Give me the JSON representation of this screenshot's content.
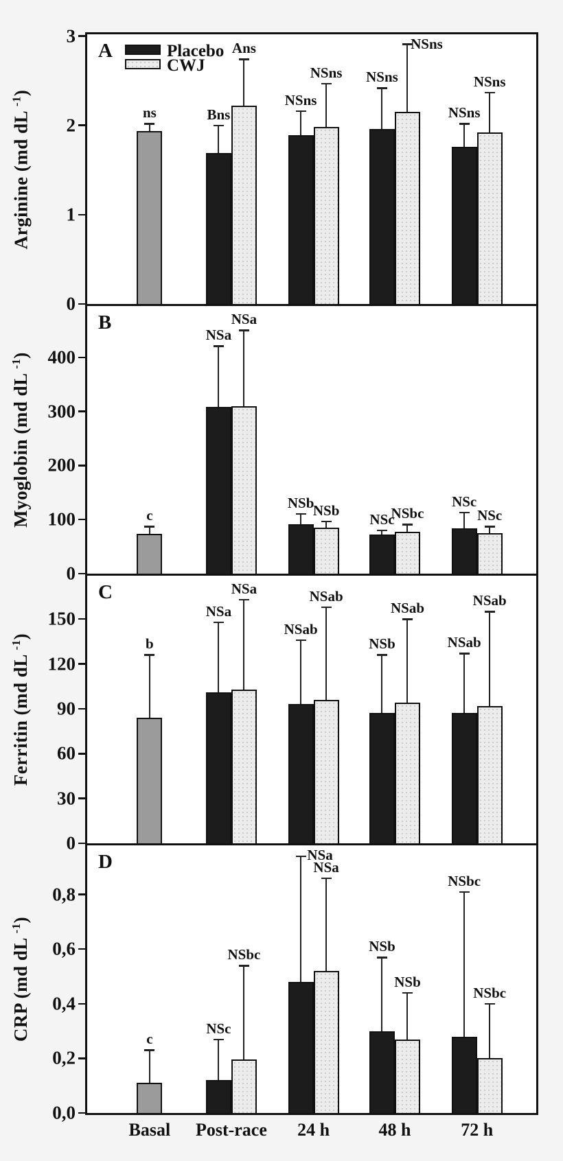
{
  "figure": {
    "background": "#f4f4f4",
    "colors": {
      "placebo": "#1c1c1c",
      "cwj": "#ececec",
      "basal": "#9b9b9b",
      "axis": "#111111"
    },
    "legend": [
      {
        "series": "Placebo",
        "swatch": "placebo"
      },
      {
        "series": "CWJ",
        "swatch": "cwj"
      }
    ]
  },
  "chart_data": {
    "type": "bar",
    "categories": [
      "Basal",
      "Post-race",
      "24 h",
      "48 h",
      "72 h"
    ],
    "series": [
      "Placebo",
      "CWJ"
    ],
    "panels": [
      {
        "letter": "A",
        "measure": "Arginine",
        "unit_base": "md dL",
        "unit_exp": "-1",
        "ylabel": "Arginine (md dL-1)",
        "ylim": [
          0,
          3.02
        ],
        "yticks": [
          {
            "v": 0,
            "label": "0"
          },
          {
            "v": 1,
            "label": "1"
          },
          {
            "v": 2,
            "label": "2"
          },
          {
            "v": 3,
            "label": "3"
          }
        ],
        "bars": [
          {
            "category": "Basal",
            "series": "Basal",
            "value": 1.94,
            "err_top": 2.02,
            "sig": "ns"
          },
          {
            "category": "Post-race",
            "series": "Placebo",
            "value": 1.69,
            "err_top": 2.0,
            "sig": "Bns"
          },
          {
            "category": "Post-race",
            "series": "CWJ",
            "value": 2.22,
            "err_top": 2.74,
            "sig": "Ans"
          },
          {
            "category": "24 h",
            "series": "Placebo",
            "value": 1.89,
            "err_top": 2.16,
            "sig": "NSns"
          },
          {
            "category": "24 h",
            "series": "CWJ",
            "value": 1.98,
            "err_top": 2.47,
            "sig": "NSns"
          },
          {
            "category": "48 h",
            "series": "Placebo",
            "value": 1.96,
            "err_top": 2.42,
            "sig": "NSns"
          },
          {
            "category": "48 h",
            "series": "CWJ",
            "value": 2.15,
            "err_top": 2.91,
            "sig": "NSns"
          },
          {
            "category": "72 h",
            "series": "Placebo",
            "value": 1.76,
            "err_top": 2.02,
            "sig": "NSns"
          },
          {
            "category": "72 h",
            "series": "CWJ",
            "value": 1.92,
            "err_top": 2.37,
            "sig": "NSns"
          }
        ]
      },
      {
        "letter": "B",
        "measure": "Myoglobin",
        "unit_base": "md dL",
        "unit_exp": "-1",
        "ylabel": "Myoglobin (md dL-1)",
        "ylim": [
          0,
          495
        ],
        "yticks": [
          {
            "v": 0,
            "label": "0"
          },
          {
            "v": 100,
            "label": "100"
          },
          {
            "v": 200,
            "label": "200"
          },
          {
            "v": 300,
            "label": "300"
          },
          {
            "v": 400,
            "label": "400"
          }
        ],
        "bars": [
          {
            "category": "Basal",
            "series": "Basal",
            "value": 73,
            "err_top": 87,
            "sig": "c"
          },
          {
            "category": "Post-race",
            "series": "Placebo",
            "value": 308,
            "err_top": 421,
            "sig": "NSa"
          },
          {
            "category": "Post-race",
            "series": "CWJ",
            "value": 310,
            "err_top": 450,
            "sig": "NSa"
          },
          {
            "category": "24 h",
            "series": "Placebo",
            "value": 92,
            "err_top": 111,
            "sig": "NSb"
          },
          {
            "category": "24 h",
            "series": "CWJ",
            "value": 85,
            "err_top": 97,
            "sig": "NSb"
          },
          {
            "category": "48 h",
            "series": "Placebo",
            "value": 72,
            "err_top": 80,
            "sig": "NSc"
          },
          {
            "category": "48 h",
            "series": "CWJ",
            "value": 77,
            "err_top": 91,
            "sig": "NSbc"
          },
          {
            "category": "72 h",
            "series": "Placebo",
            "value": 84,
            "err_top": 113,
            "sig": "NSc"
          },
          {
            "category": "72 h",
            "series": "CWJ",
            "value": 75,
            "err_top": 87,
            "sig": "NSc"
          }
        ]
      },
      {
        "letter": "C",
        "measure": "Ferritin",
        "unit_base": "md dL",
        "unit_exp": "-1",
        "ylabel": "Ferritin (md dL-1)",
        "ylim": [
          0,
          179
        ],
        "yticks": [
          {
            "v": 0,
            "label": "0"
          },
          {
            "v": 30,
            "label": "30"
          },
          {
            "v": 60,
            "label": "60"
          },
          {
            "v": 90,
            "label": "90"
          },
          {
            "v": 120,
            "label": "120"
          },
          {
            "v": 150,
            "label": "150"
          }
        ],
        "bars": [
          {
            "category": "Basal",
            "series": "Basal",
            "value": 84,
            "err_top": 126,
            "sig": "b"
          },
          {
            "category": "Post-race",
            "series": "Placebo",
            "value": 101,
            "err_top": 148,
            "sig": "NSa"
          },
          {
            "category": "Post-race",
            "series": "CWJ",
            "value": 103,
            "err_top": 163,
            "sig": "NSa"
          },
          {
            "category": "24 h",
            "series": "Placebo",
            "value": 93,
            "err_top": 136,
            "sig": "NSab"
          },
          {
            "category": "24 h",
            "series": "CWJ",
            "value": 96,
            "err_top": 158,
            "sig": "NSab"
          },
          {
            "category": "48 h",
            "series": "Placebo",
            "value": 87,
            "err_top": 126,
            "sig": "NSb"
          },
          {
            "category": "48 h",
            "series": "CWJ",
            "value": 94,
            "err_top": 150,
            "sig": "NSab"
          },
          {
            "category": "72 h",
            "series": "Placebo",
            "value": 87,
            "err_top": 127,
            "sig": "NSab"
          },
          {
            "category": "72 h",
            "series": "CWJ",
            "value": 92,
            "err_top": 155,
            "sig": "NSab"
          }
        ]
      },
      {
        "letter": "D",
        "measure": "CRP",
        "unit_base": "md dL",
        "unit_exp": "-1",
        "ylabel": "CRP (md dL-1)",
        "ylim": [
          0,
          0.98
        ],
        "yticks": [
          {
            "v": 0,
            "label": "0,0"
          },
          {
            "v": 0.2,
            "label": "0,2"
          },
          {
            "v": 0.4,
            "label": "0,4"
          },
          {
            "v": 0.6,
            "label": "0,6"
          },
          {
            "v": 0.8,
            "label": "0,8"
          }
        ],
        "bars": [
          {
            "category": "Basal",
            "series": "Basal",
            "value": 0.11,
            "err_top": 0.23,
            "sig": "c"
          },
          {
            "category": "Post-race",
            "series": "Placebo",
            "value": 0.12,
            "err_top": 0.27,
            "sig": "NSc"
          },
          {
            "category": "Post-race",
            "series": "CWJ",
            "value": 0.195,
            "err_top": 0.54,
            "sig": "NSbc"
          },
          {
            "category": "24 h",
            "series": "Placebo",
            "value": 0.48,
            "err_top": 0.94,
            "sig": "NSa"
          },
          {
            "category": "24 h",
            "series": "CWJ",
            "value": 0.52,
            "err_top": 0.86,
            "sig": "NSa"
          },
          {
            "category": "48 h",
            "series": "Placebo",
            "value": 0.3,
            "err_top": 0.57,
            "sig": "NSb"
          },
          {
            "category": "48 h",
            "series": "CWJ",
            "value": 0.27,
            "err_top": 0.44,
            "sig": "NSb"
          },
          {
            "category": "72 h",
            "series": "Placebo",
            "value": 0.28,
            "err_top": 0.81,
            "sig": "NSbc"
          },
          {
            "category": "72 h",
            "series": "CWJ",
            "value": 0.2,
            "err_top": 0.4,
            "sig": "NSbc"
          }
        ]
      }
    ]
  }
}
